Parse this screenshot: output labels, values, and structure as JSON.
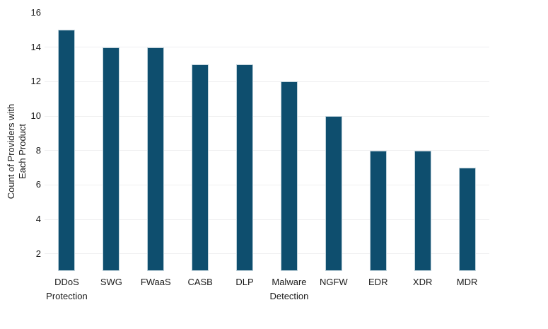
{
  "chart_data": {
    "type": "bar",
    "title": "",
    "xlabel": "",
    "ylabel": "Count of Providers with Each Product",
    "ylabel_lines": [
      "Count of Providers with",
      "Each Product"
    ],
    "categories": [
      "DDoS Protection",
      "SWG",
      "FWaaS",
      "CASB",
      "DLP",
      "Malware Detection",
      "NGFW",
      "EDR",
      "XDR",
      "MDR"
    ],
    "values": [
      15,
      14,
      14,
      13,
      13,
      12,
      10,
      8,
      8,
      7
    ],
    "ylim": [
      1,
      16
    ],
    "y_ticks": [
      2,
      4,
      6,
      8,
      10,
      12,
      14,
      16
    ],
    "gridline_values": [
      2,
      4,
      6,
      8,
      10,
      12,
      14
    ],
    "grid": "horizontal",
    "legend_position": "none",
    "bar_color": "#0e4e6e",
    "bar_border_color": "#bfd2db",
    "gridline_color": "#efeff0",
    "text_color": "#1a1a1a",
    "background_color": "#ffffff"
  }
}
